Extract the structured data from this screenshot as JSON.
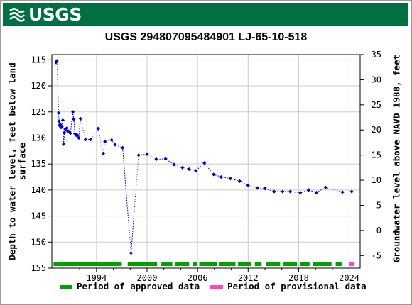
{
  "header": {
    "logo_text": "USGS",
    "logo_icon": "usgs-wave-icon",
    "banner_color": "#006f41"
  },
  "chart_data": {
    "type": "scatter",
    "title": "USGS 294807095484901 LJ-65-10-518",
    "ylabel_left_lines": [
      "Depth to water level, feet below land",
      "surface"
    ],
    "ylabel_right": "Groundwater level above NAVD 1988, feet",
    "xlim": [
      1988.7,
      2025.3
    ],
    "ylim_left": [
      155,
      114
    ],
    "ylim_right": [
      -7.5,
      35
    ],
    "x_ticks": [
      1994,
      2000,
      2006,
      2012,
      2018,
      2024
    ],
    "y_ticks_left": [
      115,
      120,
      125,
      130,
      135,
      140,
      145,
      150,
      155
    ],
    "y_ticks_right": [
      35,
      30,
      25,
      20,
      15,
      10,
      5,
      0,
      -5
    ],
    "grid": true,
    "series": [
      {
        "color": "#0000cc",
        "points": [
          [
            1989.2,
            115.5
          ],
          [
            1989.3,
            115.2
          ],
          [
            1989.5,
            125.2
          ],
          [
            1989.55,
            126.8
          ],
          [
            1989.6,
            127.6
          ],
          [
            1989.7,
            127.4
          ],
          [
            1989.8,
            128.0
          ],
          [
            1989.9,
            127.8
          ],
          [
            1990.0,
            126.6
          ],
          [
            1990.1,
            131.2
          ],
          [
            1990.2,
            129.0
          ],
          [
            1990.3,
            128.3
          ],
          [
            1990.4,
            128.5
          ],
          [
            1990.5,
            128.1
          ],
          [
            1990.65,
            128.7
          ],
          [
            1990.8,
            128.8
          ],
          [
            1990.9,
            129.1
          ],
          [
            1991.2,
            125.0
          ],
          [
            1991.3,
            126.4
          ],
          [
            1991.45,
            129.2
          ],
          [
            1991.6,
            129.5
          ],
          [
            1991.75,
            129.5
          ],
          [
            1991.9,
            130.0
          ],
          [
            1992.1,
            126.3
          ],
          [
            1992.7,
            130.3
          ],
          [
            1993.3,
            130.3
          ],
          [
            1994.2,
            128.2
          ],
          [
            1994.8,
            133.0
          ],
          [
            1995.0,
            130.7
          ],
          [
            1995.8,
            130.4
          ],
          [
            1996.2,
            131.3
          ],
          [
            1997.1,
            131.9
          ],
          [
            1998.1,
            152.1
          ],
          [
            1999.0,
            133.3
          ],
          [
            2000.0,
            133.1
          ],
          [
            2001.1,
            134.1
          ],
          [
            2002.2,
            134.0
          ],
          [
            2003.2,
            135.1
          ],
          [
            2004.2,
            135.7
          ],
          [
            2005.0,
            136.0
          ],
          [
            2005.8,
            136.3
          ],
          [
            2006.8,
            134.8
          ],
          [
            2007.9,
            137.0
          ],
          [
            2008.8,
            137.5
          ],
          [
            2009.9,
            137.8
          ],
          [
            2011.0,
            138.3
          ],
          [
            2012.0,
            139.1
          ],
          [
            2013.1,
            139.6
          ],
          [
            2014.0,
            139.7
          ],
          [
            2015.1,
            140.3
          ],
          [
            2016.1,
            140.3
          ],
          [
            2017.0,
            140.3
          ],
          [
            2018.2,
            140.5
          ],
          [
            2019.2,
            140.0
          ],
          [
            2020.1,
            140.5
          ],
          [
            2021.2,
            139.5
          ],
          [
            2023.2,
            140.4
          ],
          [
            2024.3,
            140.3
          ]
        ]
      }
    ],
    "approval_bar": {
      "approved_color": "#00a000",
      "provisional_color": "#ff44cc",
      "approved_segments": [
        [
          1988.9,
          1997.0
        ],
        [
          1997.7,
          2001.2
        ],
        [
          2001.7,
          2003.0
        ],
        [
          2003.3,
          2005.0
        ],
        [
          2005.4,
          2005.9
        ],
        [
          2006.2,
          2008.3
        ],
        [
          2008.6,
          2010.5
        ],
        [
          2010.8,
          2012.4
        ],
        [
          2012.8,
          2013.6
        ],
        [
          2014.1,
          2015.8
        ],
        [
          2016.2,
          2017.8
        ],
        [
          2018.2,
          2019.3
        ],
        [
          2019.7,
          2021.9
        ],
        [
          2022.4,
          2023.1
        ]
      ],
      "provisional_segments": [
        [
          2024.0,
          2024.6
        ]
      ]
    },
    "legend": [
      {
        "label": "Period of approved data",
        "color": "#00a000"
      },
      {
        "label": "Period of provisional data",
        "color": "#ff44cc"
      }
    ],
    "legend_placement": "bottom"
  }
}
